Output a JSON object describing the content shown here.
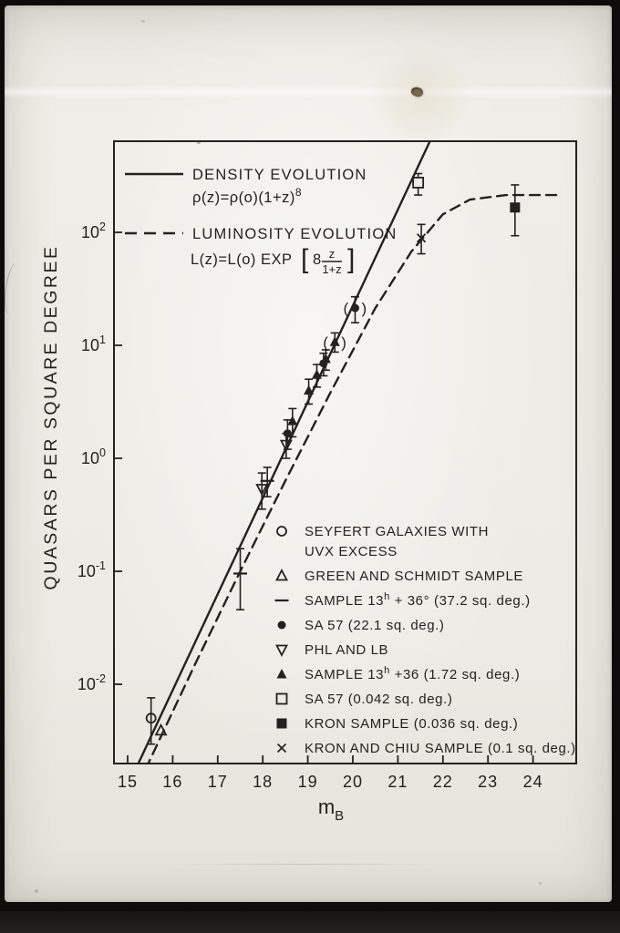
{
  "colors": {
    "ink": "#24221f",
    "paper": "#edebe5",
    "background": "#0d0c0a"
  },
  "chart_data": {
    "type": "scatter",
    "title": "",
    "xlabel": "m",
    "xlabel_subscript": "B",
    "ylabel": "QUASARS PER SQUARE DEGREE",
    "x_ticks": [
      "15",
      "16",
      "17",
      "18",
      "19",
      "20",
      "21",
      "22",
      "23",
      "24"
    ],
    "y_ticks": [
      {
        "mantissa": "10",
        "exp": "2"
      },
      {
        "mantissa": "10",
        "exp": "1"
      },
      {
        "mantissa": "10",
        "exp": "0"
      },
      {
        "mantissa": "10",
        "exp": "-1"
      },
      {
        "mantissa": "10",
        "exp": "-2"
      }
    ],
    "xlim": [
      14.7,
      25.0
    ],
    "ylog_lim": [
      -2.7,
      2.81
    ],
    "grid": false,
    "legend_position": "inside",
    "models": [
      {
        "name": "density-evolution",
        "style": "solid",
        "label": "DENSITY EVOLUTION",
        "formula": {
          "body": "ρ(z)=ρ(o)(1+z)",
          "sup": "8"
        },
        "points_x_log10y": [
          [
            15.18,
            -2.75
          ],
          [
            21.75,
            2.84
          ]
        ]
      },
      {
        "name": "luminosity-evolution",
        "style": "dashed",
        "label": "LUMINOSITY EVOLUTION",
        "formula": {
          "body": "L(z)=L(o) EXP",
          "bracket_coef": "8",
          "frac_num": "z",
          "frac_den": "1+z"
        },
        "points_x_log10y": [
          [
            15.4,
            -2.75
          ],
          [
            16.5,
            -1.82
          ],
          [
            17.5,
            -1.0
          ],
          [
            18.5,
            -0.2
          ],
          [
            19.5,
            0.58
          ],
          [
            20.5,
            1.33
          ],
          [
            21.3,
            1.83
          ],
          [
            22.0,
            2.16
          ],
          [
            22.6,
            2.29
          ],
          [
            23.4,
            2.33
          ],
          [
            24.6,
            2.33
          ]
        ]
      }
    ],
    "series": [
      {
        "name": "seyfert-uvx",
        "marker": "circle-open",
        "legend_lines": [
          [
            {
              "t": "SEYFERT GALAXIES WITH"
            }
          ],
          [
            {
              "t": "UVX EXCESS"
            }
          ]
        ],
        "points": [
          {
            "x": 15.52,
            "log10y": -2.3,
            "err": [
              -2.53,
              -2.12
            ]
          }
        ]
      },
      {
        "name": "green-schmidt",
        "marker": "triangle-open",
        "legend_lines": [
          [
            {
              "t": "GREEN AND SCHMIDT SAMPLE"
            }
          ]
        ],
        "points": [
          {
            "x": 15.74,
            "log10y": -2.41
          }
        ]
      },
      {
        "name": "sample-13h-36-wide",
        "marker": "dash",
        "legend_lines": [
          [
            {
              "t": "SAMPLE 13"
            },
            {
              "t": "h",
              "sup": true
            },
            {
              "t": " + 36° (37.2 sq. deg.)"
            }
          ]
        ],
        "points": [
          {
            "x": 17.5,
            "log10y": -1.02,
            "err": [
              -1.34,
              -0.8
            ]
          },
          {
            "x": 18.1,
            "log10y": -0.2,
            "err": [
              -0.34,
              -0.08
            ]
          }
        ]
      },
      {
        "name": "sa57-221",
        "marker": "circle-filled",
        "legend_lines": [
          [
            {
              "t": "SA 57 (22.1 sq. deg.)"
            }
          ]
        ],
        "points": [
          {
            "x": 18.55,
            "log10y": 0.22,
            "err": [
              0.08,
              0.34
            ]
          },
          {
            "x": 19.35,
            "log10y": 0.84,
            "err": [
              0.73,
              0.93
            ]
          },
          {
            "x": 20.05,
            "log10y": 1.33,
            "err": [
              1.2,
              1.43
            ],
            "paren": true
          }
        ]
      },
      {
        "name": "phl-lb",
        "marker": "triangle-down-open",
        "legend_lines": [
          [
            {
              "t": "PHL AND LB"
            }
          ]
        ],
        "points": [
          {
            "x": 17.98,
            "log10y": -0.27,
            "err": [
              -0.45,
              -0.13
            ]
          },
          {
            "x": 18.52,
            "log10y": 0.12,
            "err": [
              0.0,
              0.22
            ]
          }
        ]
      },
      {
        "name": "sample-13h-36-deep",
        "marker": "triangle-filled",
        "legend_lines": [
          [
            {
              "t": "SAMPLE 13"
            },
            {
              "t": "h",
              "sup": true
            },
            {
              "t": " +36 (1.72 sq. deg.)"
            }
          ]
        ],
        "points": [
          {
            "x": 18.66,
            "log10y": 0.33,
            "err": [
              0.19,
              0.44
            ]
          },
          {
            "x": 19.02,
            "log10y": 0.6,
            "err": [
              0.48,
              0.7
            ]
          },
          {
            "x": 19.2,
            "log10y": 0.74,
            "err": [
              0.63,
              0.83
            ]
          },
          {
            "x": 19.4,
            "log10y": 0.88,
            "err": [
              0.78,
              0.96
            ]
          },
          {
            "x": 19.6,
            "log10y": 1.03,
            "err": [
              0.94,
              1.11
            ],
            "paren": true
          }
        ]
      },
      {
        "name": "sa57-0042",
        "marker": "square-open",
        "legend_lines": [
          [
            {
              "t": "SA 57 (0.042 sq. deg.)"
            }
          ]
        ],
        "points": [
          {
            "x": 21.45,
            "log10y": 2.44,
            "err": [
              2.33,
              2.52
            ]
          }
        ]
      },
      {
        "name": "kron",
        "marker": "square-filled",
        "legend_lines": [
          [
            {
              "t": "KRON SAMPLE (0.036 sq. deg.)"
            }
          ]
        ],
        "points": [
          {
            "x": 23.6,
            "log10y": 2.22,
            "err": [
              1.97,
              2.42
            ]
          }
        ]
      },
      {
        "name": "kron-chiu",
        "marker": "cross",
        "legend_lines": [
          [
            {
              "t": "KRON AND CHIU SAMPLE (0.1 sq. deg.)"
            }
          ]
        ],
        "points": [
          {
            "x": 21.52,
            "log10y": 1.95,
            "err": [
              1.81,
              2.07
            ]
          }
        ]
      }
    ]
  }
}
